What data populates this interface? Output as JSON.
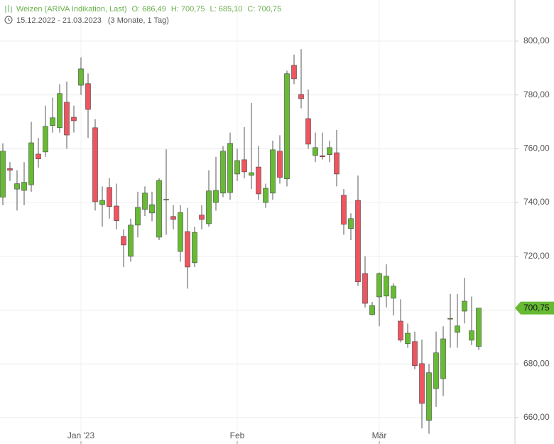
{
  "chart_data": {
    "type": "candlestick",
    "title": "Weizen (ARIVA Indikation, Last)",
    "ohlc_labels": [
      "O: 686,49",
      "H: 700,75",
      "L: 685,10",
      "C: 700,75"
    ],
    "period": "15.12.2022 - 21.03.2023",
    "period_note": "(3 Monate, 1 Tag)",
    "open": [
      742,
      752.6,
      745,
      744.5,
      746.6,
      758,
      758.8,
      768.6,
      767.8,
      777.3,
      771.7,
      783.6,
      784.2,
      767.8,
      739.2,
      745.6,
      738.7,
      727.4,
      720,
      731.6,
      737.4,
      736.1,
      727.1,
      741,
      734.8,
      721.8,
      729.2,
      717.6,
      735.3,
      732.1,
      740,
      743.5,
      743.7,
      750.6,
      755.9,
      750.1,
      753.2,
      740,
      743.5,
      759.1,
      748.8,
      791,
      780.2,
      771.2,
      757.5,
      757.4,
      757.8,
      758.5,
      742.7,
      730.3,
      740.8,
      713.6,
      698.3,
      704.9,
      705.2,
      704.4,
      695.9,
      687.5,
      688.3,
      680.1,
      659,
      670.8,
      674.5,
      696.7,
      691.7,
      699.6,
      688.8,
      686.49
    ],
    "high": [
      762,
      755,
      752,
      755,
      770,
      764,
      776,
      779,
      784,
      785,
      776,
      794,
      788,
      771,
      746,
      749,
      747,
      730,
      734,
      744,
      746,
      744,
      749,
      759.8,
      739,
      739,
      738,
      731,
      739,
      752,
      757,
      761,
      766,
      760,
      768,
      777,
      761,
      747,
      763,
      765,
      789,
      795,
      797,
      782,
      766,
      766,
      763,
      767,
      745,
      736,
      750,
      720,
      703,
      714,
      717,
      710,
      704,
      695,
      692,
      689,
      680,
      692,
      694,
      706,
      706,
      712,
      705,
      700.75
    ],
    "low": [
      739,
      748,
      737,
      739,
      744,
      753,
      757,
      766,
      766,
      760,
      766,
      780,
      764,
      737,
      731,
      734,
      730,
      716,
      718,
      727,
      735,
      733,
      726,
      728,
      730,
      718,
      708,
      716,
      730,
      731,
      737,
      742,
      741,
      748,
      749,
      745,
      741,
      738,
      741,
      747,
      746,
      784,
      775,
      760,
      755,
      756,
      755,
      746,
      728,
      726,
      709,
      701,
      698,
      694,
      701,
      698,
      688,
      686,
      678,
      656,
      654,
      664,
      668,
      686,
      686,
      695,
      687,
      685.1
    ],
    "close": [
      759.1,
      752,
      747,
      747.5,
      762.2,
      756.2,
      768.3,
      771.5,
      780.5,
      765.1,
      770.4,
      789.7,
      774.6,
      740.3,
      740.8,
      738.5,
      733.2,
      724.2,
      731.6,
      738.2,
      743.5,
      739.2,
      748.2,
      741.2,
      733.7,
      736.3,
      716,
      728.9,
      733.7,
      744.3,
      744.5,
      759.1,
      762,
      755.6,
      751.4,
      751.1,
      743.2,
      745.3,
      759.6,
      749.3,
      787.9,
      786,
      778.6,
      761.7,
      760.4,
      757,
      760.4,
      750.6,
      731.9,
      734,
      710.5,
      702.5,
      701.7,
      713.6,
      712.6,
      708.9,
      688.8,
      691.4,
      679.3,
      665.3,
      676.7,
      684.1,
      689.3,
      696.9,
      694.1,
      703.3,
      692.3,
      700.75
    ],
    "up_color": "#66bb33",
    "down_color": "#ee5560",
    "xlim": [
      -0.4,
      72.1
    ],
    "xticks": [
      {
        "value": 11,
        "label": "Jan '23"
      },
      {
        "value": 33,
        "label": "Feb"
      },
      {
        "value": 53,
        "label": "Mär"
      }
    ],
    "ylim": [
      650.2,
      815.3
    ],
    "yticks": [
      {
        "value": 660,
        "label": "660,00"
      },
      {
        "value": 680,
        "label": "680,00"
      },
      {
        "value": 700,
        "label": "700,00"
      },
      {
        "value": 720,
        "label": "720,00"
      },
      {
        "value": 740,
        "label": "740,00"
      },
      {
        "value": 760,
        "label": "760,00"
      },
      {
        "value": 780,
        "label": "780,00"
      },
      {
        "value": 800,
        "label": "800,00"
      }
    ],
    "last_price": {
      "value": 700.75,
      "label": "700,75"
    },
    "grid": true
  }
}
